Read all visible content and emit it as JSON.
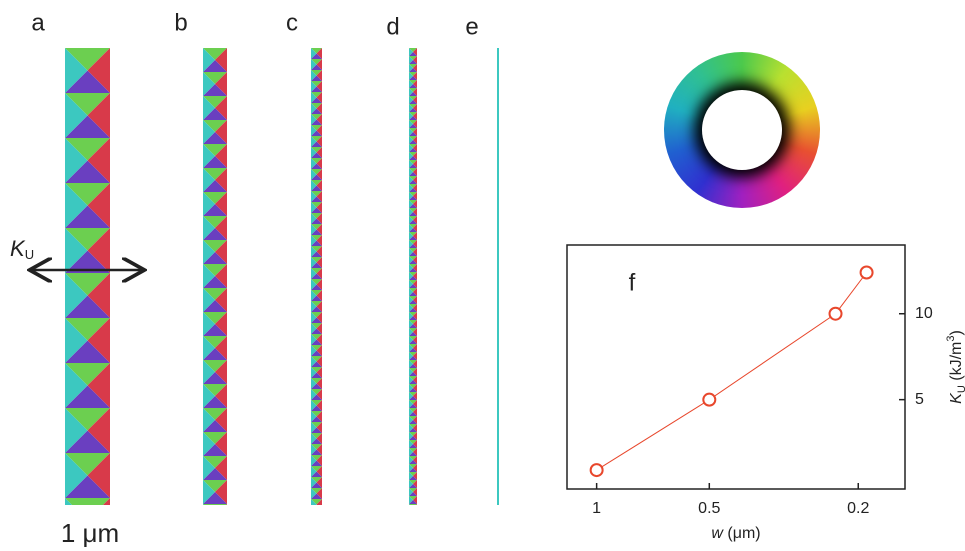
{
  "panel_labels": [
    "a",
    "b",
    "c",
    "d",
    "e"
  ],
  "scale_label": "1 μm",
  "arrow_label": {
    "symbol": "K",
    "subscript": "U"
  },
  "chart_data": {
    "type": "line",
    "panel_label": "f",
    "x_label": {
      "symbol": "w",
      "unit": " (μm)"
    },
    "y_label": {
      "symbol": "K",
      "subscript": "U",
      "unit_pre": " (kJ/m",
      "superscript": "3",
      "unit_post": ")"
    },
    "x": [
      1,
      0.5,
      0.23,
      0.19
    ],
    "series": [
      {
        "name": "K_U",
        "color": "#e8472c",
        "values": [
          0.9,
          5,
          10,
          12.4
        ]
      }
    ],
    "x_log": true,
    "xlim": [
      1.2,
      0.15
    ],
    "xticks": [
      1,
      0.5,
      0.2
    ],
    "ylim": [
      -0.2,
      14
    ],
    "yticks": [
      5,
      10
    ],
    "y_axis_side": "right"
  }
}
